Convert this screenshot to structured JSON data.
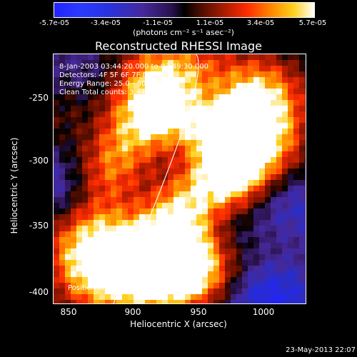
{
  "colorbar": {
    "ticks": [
      "-5.7e-05",
      "-3.4e-05",
      "-1.1e-05",
      "1.1e-05",
      "3.4e-05",
      "5.7e-05"
    ],
    "unit_label": "(photons cm⁻² s⁻¹ asec⁻²)"
  },
  "plot": {
    "title": "Reconstructed RHESSI Image",
    "info_lines": [
      " 8-Jan-2003 03:44:20.000 to 03:49:30.000",
      "Detectors: 4F 5F 6F 7F 8F, Att 0",
      "Energy Range: 25.0 - 50.0 keV",
      "Clean     Total counts: 3.44E+03"
    ],
    "peak_label": "Position of Peak = [870,-369]",
    "xlabel": "Heliocentric X (arcsec)",
    "ylabel": "Heliocentric Y (arcsec)",
    "xticks": [
      "850",
      "900",
      "950",
      "1000"
    ],
    "yticks": [
      "-250",
      "-300",
      "-350",
      "-400"
    ]
  },
  "timestamp": "23-May-2013 22:07"
}
